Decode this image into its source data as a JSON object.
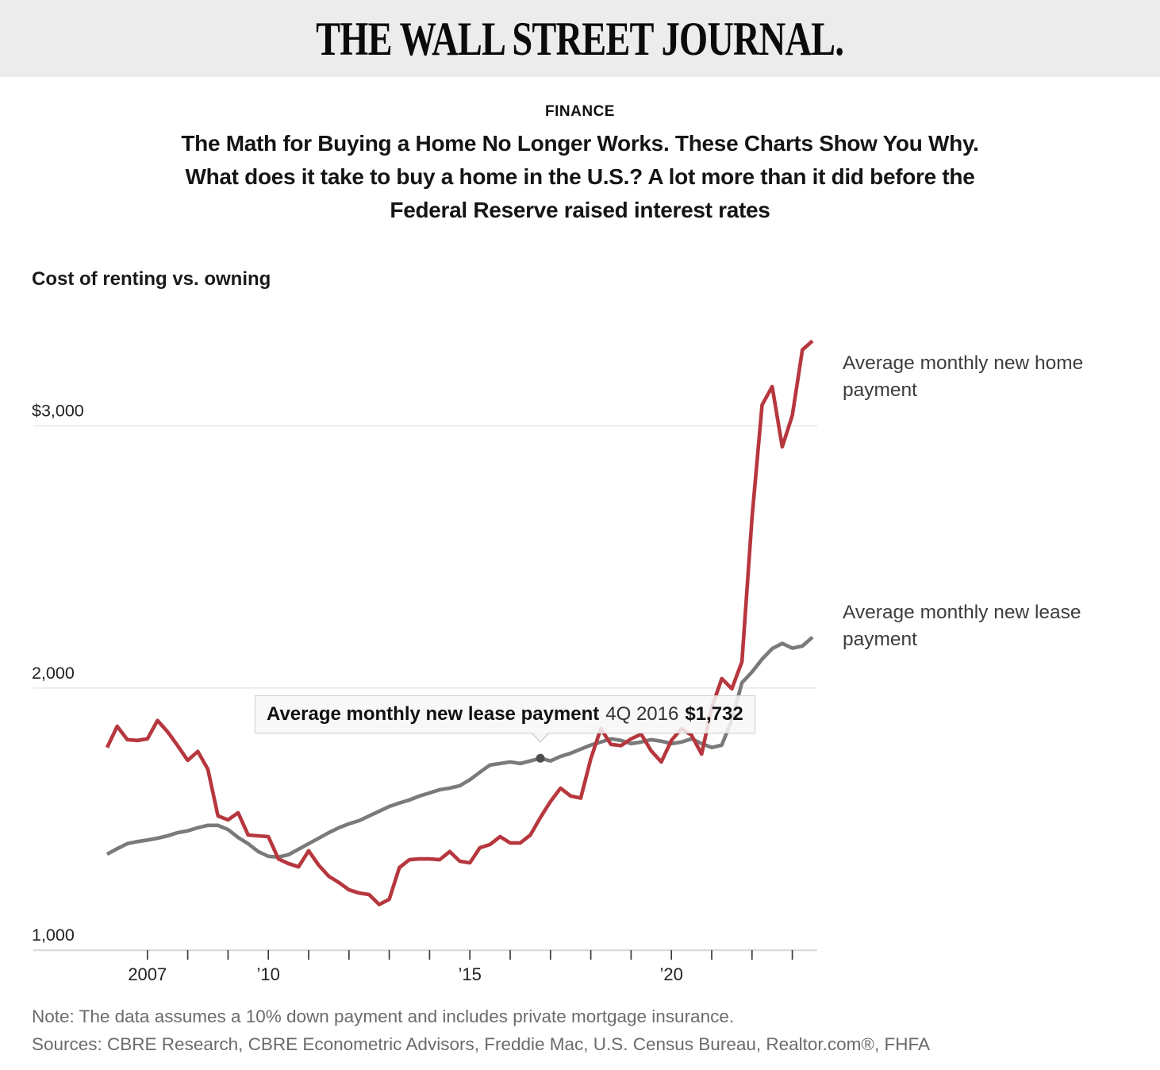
{
  "masthead": "THE WALL STREET JOURNAL.",
  "kicker": "FINANCE",
  "headline_lines": [
    "The Math for Buying a Home No Longer Works. These Charts Show You Why.",
    "What does it take to buy a home in the U.S.? A lot more than it did before the",
    "Federal Reserve raised interest rates"
  ],
  "chart": {
    "title": "Cost of renting vs. owning",
    "series_labels": {
      "home": "Average monthly new home payment",
      "lease": "Average monthly new lease payment"
    },
    "tooltip": {
      "series": "Average monthly new lease payment",
      "period": "4Q 2016",
      "value": "$1,732"
    },
    "colors": {
      "home_line": "#b7373e",
      "lease_line": "#7a7a7a",
      "gridline": "#e6e6e6",
      "axis_line": "#dcdcdc",
      "tick": "#3c3c3c",
      "dot": "#4e4e4e",
      "header_band": "#ececec"
    }
  },
  "chart_data": {
    "type": "line",
    "x_unit": "quarter",
    "x_start": "1Q 2006",
    "x_end": "3Q 2023",
    "y_unit": "$ per month",
    "ylim": [
      1000,
      3450
    ],
    "grid": true,
    "y_axis": {
      "ticks": [
        {
          "label": "$3,000",
          "value": 3000
        },
        {
          "label": "2,000",
          "value": 2000
        },
        {
          "label": "1,000",
          "value": 1000
        }
      ]
    },
    "x_axis": {
      "year_tick_quarter_indices_step": 4,
      "first_year_quarter_index": 4,
      "last_year_quarter_index": 68,
      "labels": [
        {
          "label": "2007",
          "quarter_index": 4
        },
        {
          "label": "’10",
          "quarter_index": 16
        },
        {
          "label": "’15",
          "quarter_index": 36
        },
        {
          "label": "’20",
          "quarter_index": 56
        }
      ]
    },
    "highlight": {
      "series": "lease",
      "quarter_index": 43,
      "period": "4Q 2016",
      "value": 1732
    },
    "series": [
      {
        "key": "home",
        "name": "Average monthly new home payment",
        "color": "#b7373e",
        "values": [
          1773,
          1854,
          1803,
          1800,
          1806,
          1876,
          1833,
          1780,
          1724,
          1758,
          1690,
          1512,
          1497,
          1524,
          1439,
          1436,
          1433,
          1348,
          1330,
          1318,
          1379,
          1324,
          1282,
          1258,
          1230,
          1218,
          1212,
          1174,
          1194,
          1315,
          1345,
          1348,
          1348,
          1345,
          1376,
          1339,
          1333,
          1391,
          1403,
          1433,
          1409,
          1409,
          1439,
          1506,
          1567,
          1618,
          1588,
          1580,
          1730,
          1845,
          1785,
          1780,
          1806,
          1824,
          1760,
          1718,
          1800,
          1845,
          1820,
          1748,
          1925,
          2036,
          1997,
          2100,
          2650,
          3080,
          3150,
          2920,
          3040,
          3290,
          3324
        ]
      },
      {
        "key": "lease",
        "name": "Average monthly new lease payment",
        "color": "#7a7a7a",
        "values": [
          1366,
          1387,
          1406,
          1414,
          1420,
          1427,
          1436,
          1448,
          1455,
          1467,
          1476,
          1476,
          1460,
          1430,
          1406,
          1376,
          1358,
          1355,
          1364,
          1385,
          1406,
          1427,
          1448,
          1467,
          1482,
          1494,
          1512,
          1530,
          1548,
          1561,
          1573,
          1588,
          1600,
          1612,
          1618,
          1627,
          1650,
          1679,
          1706,
          1712,
          1718,
          1712,
          1722,
          1732,
          1722,
          1739,
          1751,
          1767,
          1782,
          1794,
          1806,
          1800,
          1788,
          1794,
          1803,
          1797,
          1788,
          1794,
          1806,
          1788,
          1773,
          1782,
          1879,
          2020,
          2061,
          2110,
          2150,
          2170,
          2152,
          2160,
          2194
        ]
      }
    ]
  },
  "footer": {
    "note": "Note: The data assumes a 10% down payment and includes private mortgage insurance.",
    "sources": "Sources: CBRE Research, CBRE Econometric Advisors, Freddie Mac, U.S. Census Bureau, Realtor.com®, FHFA"
  }
}
